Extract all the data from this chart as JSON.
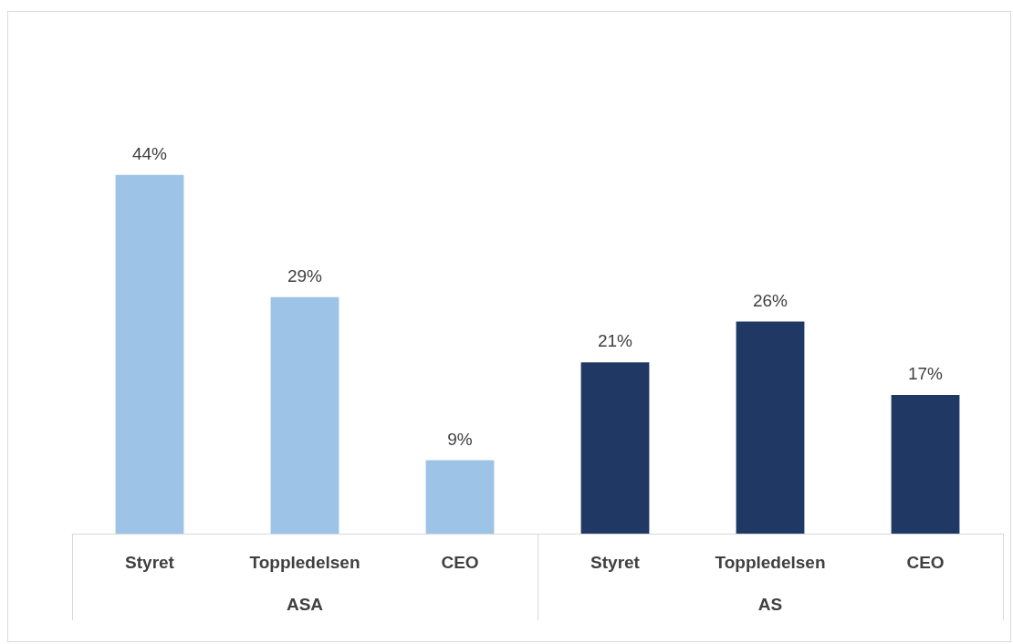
{
  "chart_data": {
    "type": "bar",
    "categories": [
      "Styret",
      "Toppledelsen",
      "CEO",
      "Styret",
      "Toppledelsen",
      "CEO"
    ],
    "values": [
      44,
      29,
      9,
      21,
      26,
      17
    ],
    "value_labels": [
      "44%",
      "29%",
      "9%",
      "21%",
      "26%",
      "17%"
    ],
    "colors": [
      "#9dc3e6",
      "#9dc3e6",
      "#9dc3e6",
      "#203864",
      "#203864",
      "#203864"
    ],
    "annotations": [
      "ASA",
      "AS"
    ],
    "grid": false
  }
}
